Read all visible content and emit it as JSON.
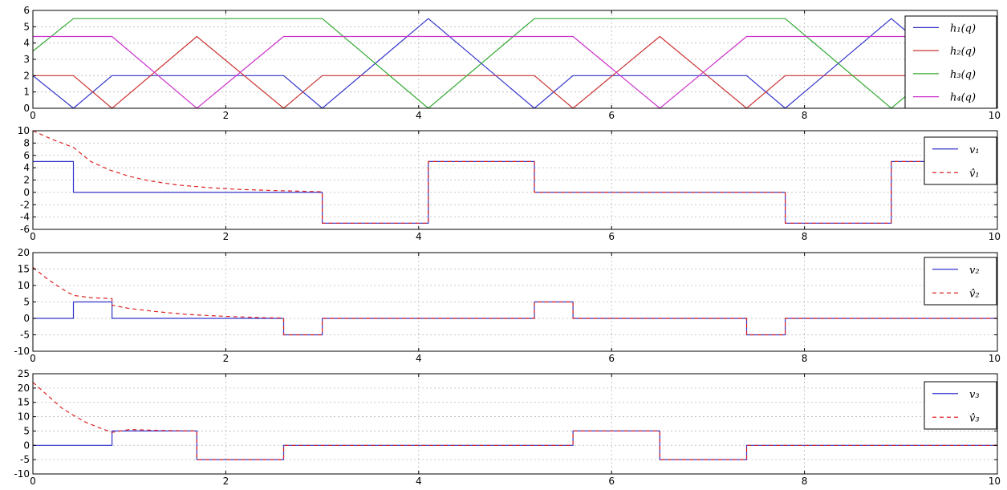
{
  "chart_data": [
    {
      "type": "line",
      "xlim": [
        0,
        10
      ],
      "ylim": [
        0,
        6
      ],
      "xticks": [
        0,
        2,
        4,
        6,
        8,
        10
      ],
      "yticks": [
        0,
        1,
        2,
        3,
        4,
        5,
        6
      ],
      "grid": true,
      "legend_position": "right",
      "series": [
        {
          "name": "h₁(q)",
          "color": "#3333cc",
          "dashed": false,
          "x": [
            0,
            0.42,
            0.82,
            2.6,
            3.0,
            4.1,
            5.2,
            5.6,
            7.4,
            7.8,
            8.9,
            10
          ],
          "y": [
            2.0,
            0,
            2.0,
            2.0,
            0,
            5.5,
            0,
            2.0,
            2.0,
            0,
            5.5,
            0
          ]
        },
        {
          "name": "h₂(q)",
          "color": "#cc3333",
          "dashed": false,
          "x": [
            0,
            0.42,
            0.82,
            1.7,
            2.6,
            3.0,
            5.2,
            5.6,
            6.5,
            7.4,
            7.8,
            10
          ],
          "y": [
            2.0,
            2.0,
            0,
            4.4,
            0,
            2.0,
            2.0,
            0,
            4.4,
            0,
            2.0,
            2.0
          ]
        },
        {
          "name": "h₃(q)",
          "color": "#33aa33",
          "dashed": false,
          "x": [
            0,
            0.42,
            3.0,
            4.1,
            5.2,
            7.8,
            8.9,
            10
          ],
          "y": [
            3.5,
            5.5,
            5.5,
            0,
            5.5,
            5.5,
            0,
            5.5
          ]
        },
        {
          "name": "h₄(q)",
          "color": "#cc33cc",
          "dashed": false,
          "x": [
            0,
            0.82,
            1.7,
            2.6,
            5.6,
            6.5,
            7.4,
            10
          ],
          "y": [
            4.4,
            4.4,
            0,
            4.4,
            4.4,
            0,
            4.4,
            4.4
          ]
        }
      ]
    },
    {
      "type": "line",
      "xlim": [
        0,
        10
      ],
      "ylim": [
        -6,
        10
      ],
      "xticks": [
        0,
        2,
        4,
        6,
        8,
        10
      ],
      "yticks": [
        -6,
        -4,
        -2,
        0,
        2,
        4,
        6,
        8,
        10
      ],
      "grid": true,
      "legend_position": "top-right",
      "series": [
        {
          "name": "v₁",
          "color": "#3333cc",
          "dashed": false,
          "step": true,
          "x": [
            0,
            0.42,
            0.42,
            3.0,
            3.0,
            4.1,
            4.1,
            5.2,
            5.2,
            7.8,
            7.8,
            8.9,
            8.9,
            10
          ],
          "y": [
            5,
            5,
            0,
            0,
            -5,
            -5,
            5,
            5,
            0,
            0,
            -5,
            -5,
            5,
            5
          ]
        },
        {
          "name": "v̂₁",
          "color": "#dd2222",
          "dashed": true,
          "x": [
            0,
            0.2,
            0.42,
            0.6,
            0.8,
            1.0,
            1.2,
            1.5,
            1.8,
            2.1,
            2.5,
            3.0,
            3.0,
            4.1,
            4.1,
            5.2,
            5.2,
            7.8,
            7.8,
            8.9,
            8.9,
            10
          ],
          "y": [
            10,
            8.6,
            7.3,
            5.0,
            3.6,
            2.6,
            1.9,
            1.2,
            0.8,
            0.5,
            0.3,
            0.1,
            -5,
            -5,
            5,
            5,
            0,
            0,
            -5,
            -5,
            5,
            5
          ]
        }
      ]
    },
    {
      "type": "line",
      "xlim": [
        0,
        10
      ],
      "ylim": [
        -10,
        20
      ],
      "xticks": [
        0,
        2,
        4,
        6,
        8,
        10
      ],
      "yticks": [
        -10,
        -5,
        0,
        5,
        10,
        15,
        20
      ],
      "grid": true,
      "legend_position": "top-right",
      "series": [
        {
          "name": "v₂",
          "color": "#3333cc",
          "dashed": false,
          "x": [
            0,
            0.42,
            0.42,
            0.82,
            0.82,
            2.6,
            2.6,
            3.0,
            3.0,
            5.2,
            5.2,
            5.6,
            5.6,
            7.4,
            7.4,
            7.8,
            7.8,
            10
          ],
          "y": [
            0,
            0,
            5,
            5,
            0,
            0,
            -5,
            -5,
            0,
            0,
            5,
            5,
            0,
            0,
            -5,
            -5,
            0,
            0
          ]
        },
        {
          "name": "v̂₂",
          "color": "#dd2222",
          "dashed": true,
          "x": [
            0,
            0.15,
            0.3,
            0.42,
            0.6,
            0.82,
            0.82,
            1.0,
            1.3,
            1.6,
            2.0,
            2.4,
            2.6,
            2.6,
            3.0,
            3.0,
            5.2,
            5.2,
            5.6,
            5.6,
            7.4,
            7.4,
            7.8,
            7.8,
            10
          ],
          "y": [
            15.5,
            12.0,
            9.0,
            7.0,
            6.3,
            6.0,
            4.0,
            3.0,
            2.0,
            1.2,
            0.6,
            0.2,
            0.1,
            -5,
            -5,
            0,
            0,
            5,
            5,
            0,
            0,
            -5,
            -5,
            0,
            0
          ]
        }
      ]
    },
    {
      "type": "line",
      "xlim": [
        0,
        10
      ],
      "ylim": [
        -10,
        25
      ],
      "xticks": [
        0,
        2,
        4,
        6,
        8,
        10
      ],
      "yticks": [
        -10,
        -5,
        0,
        5,
        10,
        15,
        20,
        25
      ],
      "grid": true,
      "legend_position": "top-right",
      "series": [
        {
          "name": "v₃",
          "color": "#3333cc",
          "dashed": false,
          "x": [
            0,
            0.82,
            0.82,
            1.7,
            1.7,
            2.6,
            2.6,
            5.6,
            5.6,
            6.5,
            6.5,
            7.4,
            7.4,
            10
          ],
          "y": [
            0,
            0,
            5,
            5,
            -5,
            -5,
            0,
            0,
            5,
            5,
            -5,
            -5,
            0,
            0
          ]
        },
        {
          "name": "v̂₃",
          "color": "#dd2222",
          "dashed": true,
          "x": [
            0,
            0.1,
            0.2,
            0.3,
            0.42,
            0.55,
            0.7,
            0.82,
            1.0,
            1.3,
            1.7,
            1.7,
            2.6,
            2.6,
            5.6,
            5.6,
            6.5,
            6.5,
            7.4,
            7.4,
            10
          ],
          "y": [
            22,
            19,
            16,
            13,
            10.5,
            8.0,
            6.0,
            4.5,
            5.5,
            5.2,
            5.0,
            -5,
            -5,
            0,
            0,
            5,
            5,
            -5,
            -5,
            0,
            0
          ]
        }
      ]
    }
  ]
}
